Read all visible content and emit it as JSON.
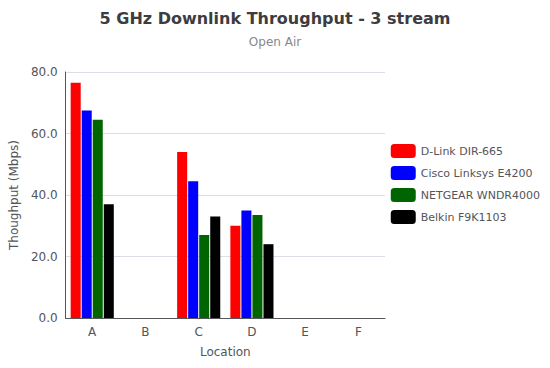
{
  "chart_data": {
    "type": "bar",
    "title": "5 GHz Downlink Throughput - 3 stream",
    "subtitle": "Open Air",
    "xlabel": "Location",
    "ylabel": "Thoughput (Mbps)",
    "categories": [
      "A",
      "B",
      "C",
      "D",
      "E",
      "F"
    ],
    "series": [
      {
        "name": "D-Link DIR-665",
        "color": "#ff0000",
        "values": [
          76.5,
          0,
          54.0,
          30.0,
          0,
          0
        ]
      },
      {
        "name": "Cisco Linksys E4200",
        "color": "#0000ff",
        "values": [
          67.5,
          0,
          44.5,
          35.0,
          0,
          0
        ]
      },
      {
        "name": "NETGEAR WNDR4000",
        "color": "#006400",
        "values": [
          64.5,
          0,
          27.0,
          33.5,
          0,
          0
        ]
      },
      {
        "name": "Belkin F9K1103",
        "color": "#000000",
        "values": [
          37.0,
          0,
          33.0,
          24.0,
          0,
          0
        ]
      }
    ],
    "ylim": [
      0,
      80
    ],
    "yticks": [
      {
        "value": 0,
        "label": "0.0"
      },
      {
        "value": 20,
        "label": "20.0"
      },
      {
        "value": 40,
        "label": "40.0"
      },
      {
        "value": 60,
        "label": "60.0"
      },
      {
        "value": 80,
        "label": "80.0"
      }
    ],
    "grid": true,
    "legend": "right"
  }
}
